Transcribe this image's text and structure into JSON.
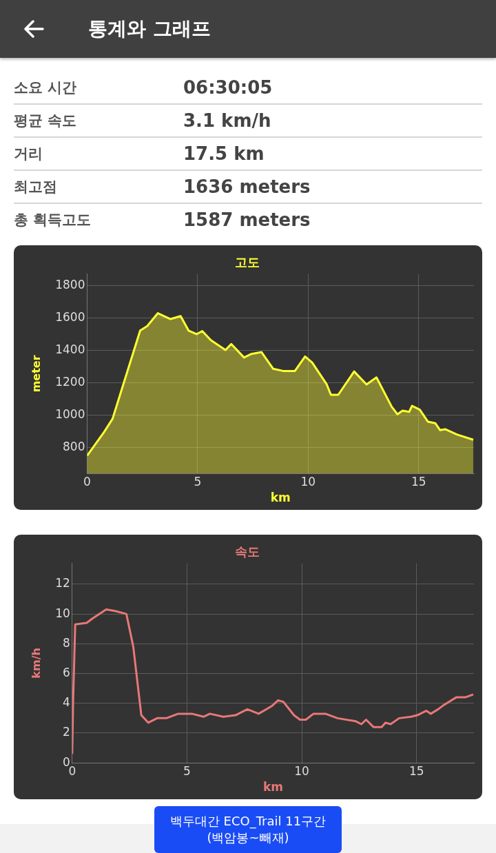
{
  "chart_data": [
    {
      "type": "other",
      "title": "통계와 그래프",
      "annotations": [
        "소요 시간",
        "06:30:05",
        "평균 속도",
        "3.1 km/h",
        "거리",
        "17.5 km",
        "최고점",
        "1636 meters",
        "총 획득고도",
        "1587 meters"
      ]
    },
    {
      "type": "area",
      "title": "고도",
      "xlabel": "km",
      "ylabel": "meter",
      "xlim": [
        0,
        17.5
      ],
      "ylim": [
        640,
        1870
      ],
      "xticks": [
        0,
        5,
        10,
        15
      ],
      "yticks": [
        800,
        1000,
        1200,
        1400,
        1600,
        1800
      ],
      "grid": true,
      "legend": false,
      "marker": "none",
      "series": [
        {
          "color": "#ffff33",
          "x": [
            0,
            0.76,
            1.15,
            1.68,
            2.4,
            2.72,
            3.2,
            3.77,
            4.23,
            4.59,
            4.95,
            5.21,
            5.6,
            6.26,
            6.52,
            7.1,
            7.43,
            7.89,
            8.42,
            8.87,
            9.4,
            9.86,
            10.18,
            10.84,
            11.03,
            11.36,
            12.08,
            12.64,
            13.09,
            13.78,
            14.04,
            14.27,
            14.57,
            14.7,
            15.05,
            15.42,
            15.75,
            15.97,
            16.2,
            16.73,
            17.47
          ],
          "values": [
            750,
            894,
            977,
            1208,
            1521,
            1549,
            1628,
            1592,
            1610,
            1521,
            1499,
            1518,
            1462,
            1401,
            1438,
            1355,
            1377,
            1388,
            1285,
            1272,
            1272,
            1361,
            1324,
            1189,
            1125,
            1125,
            1269,
            1189,
            1232,
            1051,
            1005,
            1027,
            1020,
            1057,
            1033,
            959,
            950,
            907,
            913,
            880,
            848
          ]
        }
      ]
    },
    {
      "type": "line",
      "title": "속도",
      "xlabel": "km",
      "ylabel": "km/h",
      "xlim": [
        0,
        17.5
      ],
      "ylim": [
        0,
        13.4
      ],
      "xticks": [
        0,
        5,
        10,
        15
      ],
      "yticks": [
        0,
        2,
        4,
        6,
        8,
        10,
        12
      ],
      "grid": true,
      "legend": false,
      "marker": "none",
      "series": [
        {
          "color": "#e87878",
          "x": [
            0,
            0.04,
            0.13,
            0.63,
            0.89,
            1.48,
            1.87,
            2.36,
            2.66,
            3.01,
            3.31,
            3.7,
            4.1,
            4.62,
            5.21,
            5.73,
            6.0,
            6.58,
            7.11,
            7.63,
            8.12,
            8.68,
            8.97,
            9.2,
            9.66,
            9.92,
            10.18,
            10.51,
            11.03,
            11.56,
            12.34,
            12.6,
            12.8,
            13.13,
            13.48,
            13.65,
            13.87,
            14.24,
            14.76,
            15.03,
            15.42,
            15.62,
            15.94,
            16.2,
            16.73,
            17.12,
            17.47
          ],
          "values": [
            0.6,
            4.2,
            9.3,
            9.4,
            9.7,
            10.3,
            10.2,
            10.0,
            7.8,
            3.2,
            2.7,
            3.0,
            3.0,
            3.3,
            3.3,
            3.1,
            3.3,
            3.1,
            3.2,
            3.6,
            3.3,
            3.8,
            4.2,
            4.1,
            3.2,
            2.9,
            2.9,
            3.3,
            3.3,
            3.0,
            2.8,
            2.6,
            2.9,
            2.4,
            2.4,
            2.7,
            2.6,
            3.0,
            3.1,
            3.2,
            3.5,
            3.3,
            3.6,
            3.9,
            4.4,
            4.4,
            4.6
          ]
        }
      ]
    },
    {
      "type": "other",
      "title": "백두대간 ECO_Trail 11구간 (백암봉~빼재)"
    }
  ]
}
